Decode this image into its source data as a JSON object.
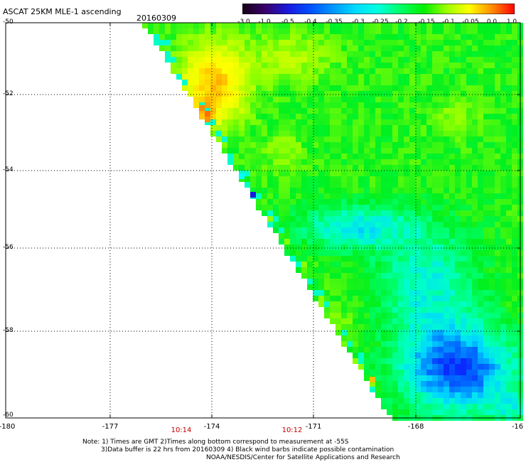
{
  "title": "ASCAT 25KM MLE-1 ascending",
  "date": "20160309",
  "colorbar": {
    "labels": [
      "-3.0",
      "-1.0",
      "-0.5",
      "-0.4",
      "-0.35",
      "-0.3",
      "-0.25",
      "-0.2",
      "-0.15",
      "-0.1",
      "-0.05",
      "0.0",
      "1.0"
    ],
    "colors": [
      "#150015",
      "#3a006a",
      "#1a1adc",
      "#0050ff",
      "#0096ff",
      "#00dcff",
      "#00ffdc",
      "#00ff64",
      "#00f000",
      "#9cff00",
      "#ffff00",
      "#ff8c00",
      "#ff0000"
    ]
  },
  "map": {
    "lat_labels": [
      "-50",
      "-52",
      "-54",
      "-56",
      "-58",
      "-60"
    ],
    "lon_labels": [
      "-180",
      "-177",
      "-174",
      "-171",
      "-168",
      "-16"
    ],
    "time_labels": [
      "10:14",
      "10:12"
    ]
  },
  "notes": [
    "Note: 1) Times are GMT 2)Times along bottom correspond to measurement at -55S",
    "3)Data buffer is 22 hrs from 20160309 4) Black wind barbs indicate possible contamination",
    "NOAA/NESDIS/Center for Satellite Applications and Research"
  ]
}
